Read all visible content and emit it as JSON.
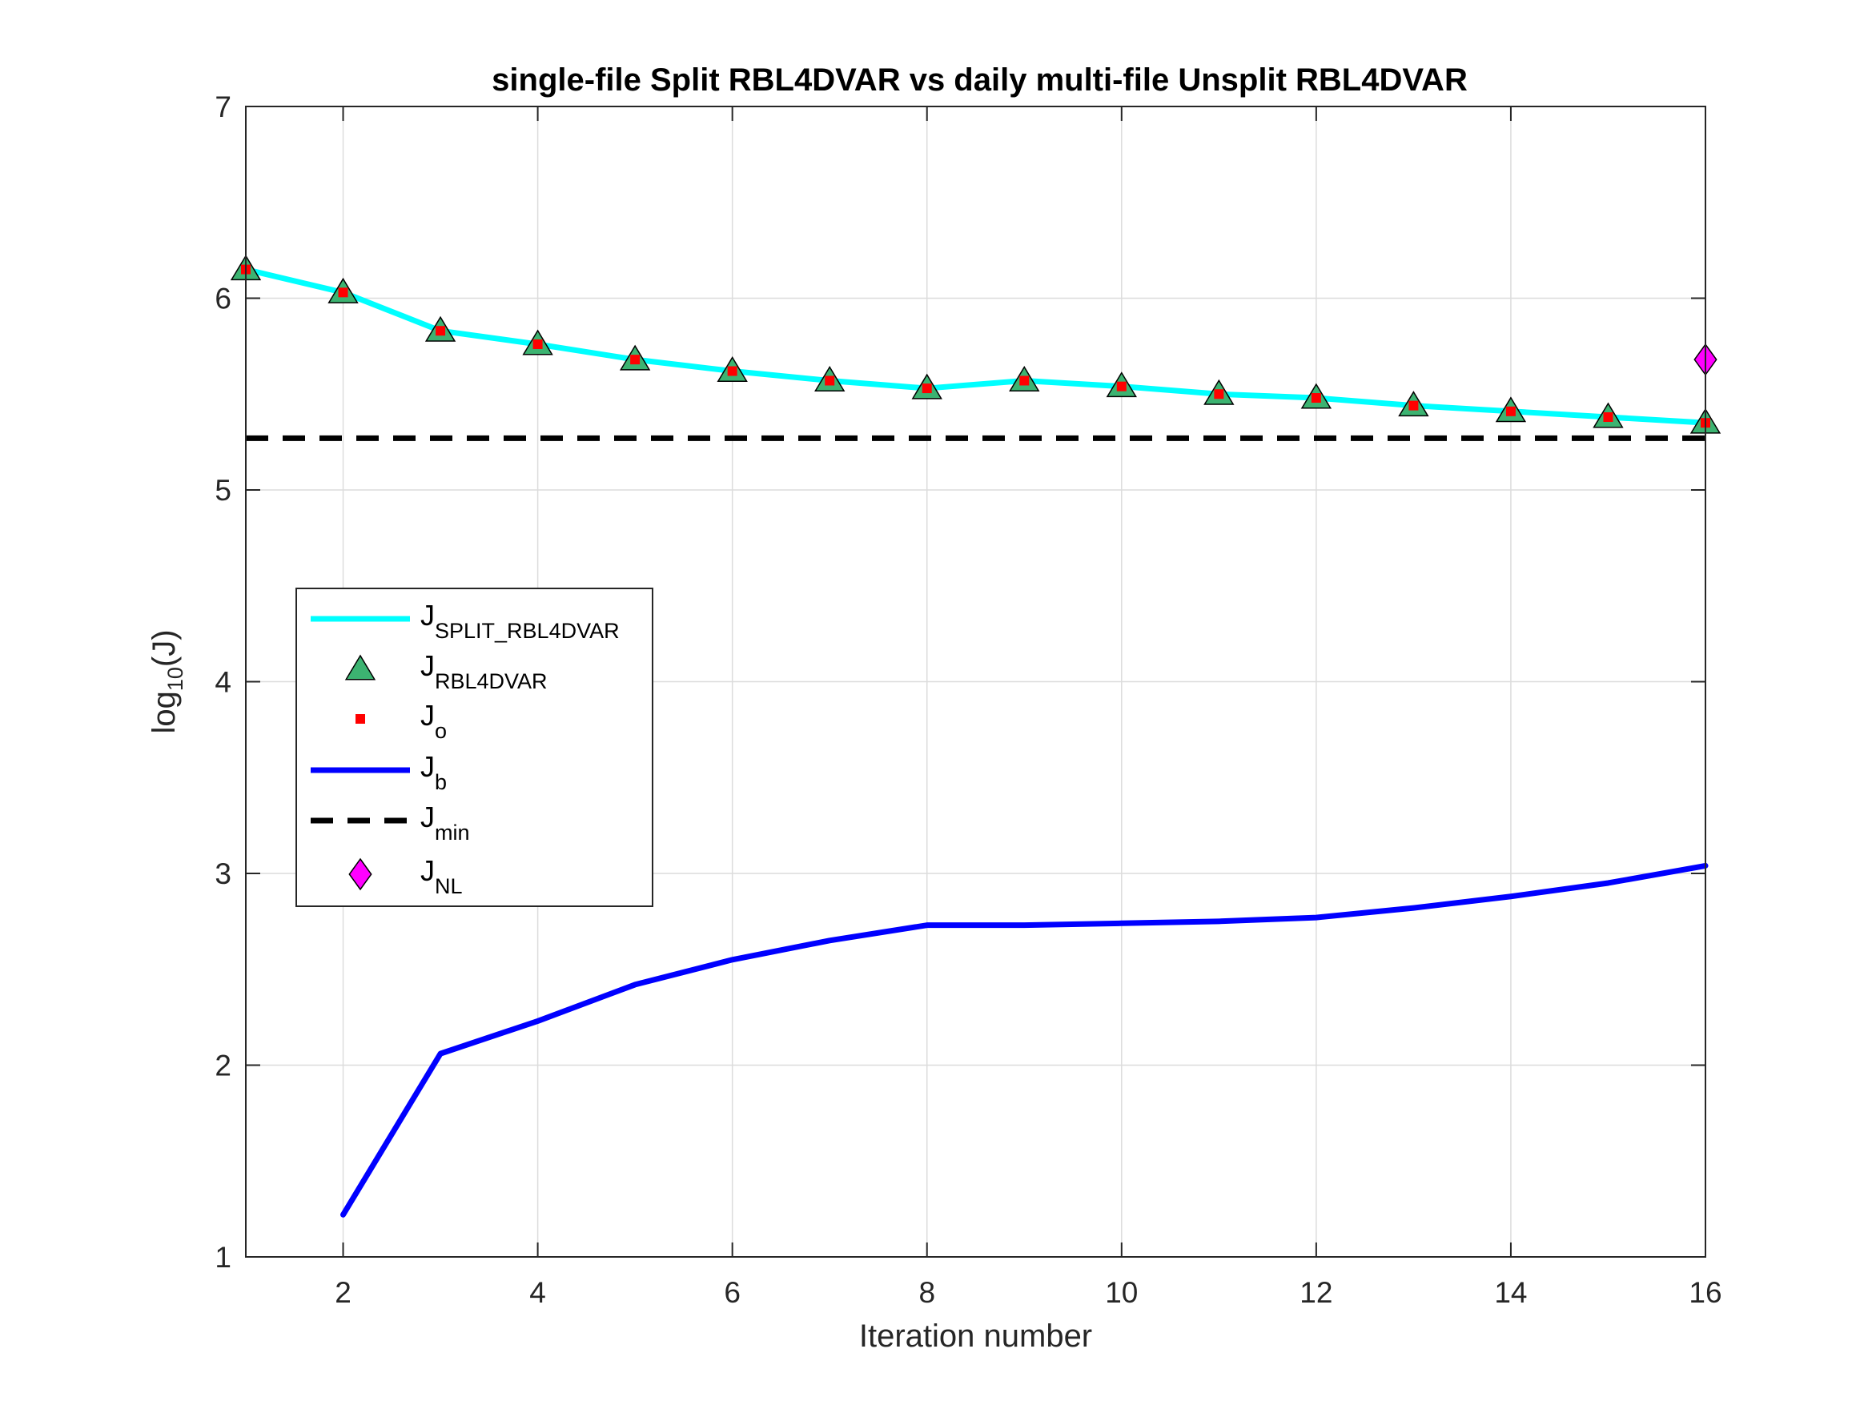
{
  "chart_data": {
    "type": "line",
    "title": "single-file Split RBL4DVAR  vs  daily multi-file Unsplit RBL4DVAR",
    "xlabel": "Iteration number",
    "ylabel": {
      "base": "log",
      "sub": "10",
      "tail": "(J)"
    },
    "xlim": [
      1,
      16
    ],
    "ylim": [
      1,
      7
    ],
    "xticks": [
      2,
      4,
      6,
      8,
      10,
      12,
      14,
      16
    ],
    "yticks": [
      1,
      2,
      3,
      4,
      5,
      6,
      7
    ],
    "grid": true,
    "legend_position": "middle-left",
    "x": [
      1,
      2,
      3,
      4,
      5,
      6,
      7,
      8,
      9,
      10,
      11,
      12,
      13,
      14,
      15,
      16
    ],
    "series": [
      {
        "name": {
          "base": "J",
          "sub": "SPLIT_RBL4DVAR"
        },
        "style": "line",
        "color": "#00FFFF",
        "values": [
          6.15,
          6.03,
          5.83,
          5.76,
          5.68,
          5.62,
          5.57,
          5.53,
          5.57,
          5.54,
          5.5,
          5.48,
          5.44,
          5.41,
          5.38,
          5.35
        ]
      },
      {
        "name": {
          "base": "J",
          "sub": "RBL4DVAR"
        },
        "style": "triangle-marker",
        "color": "#3CB371",
        "values": [
          6.15,
          6.03,
          5.83,
          5.76,
          5.68,
          5.62,
          5.57,
          5.53,
          5.57,
          5.54,
          5.5,
          5.48,
          5.44,
          5.41,
          5.38,
          5.35
        ]
      },
      {
        "name": {
          "base": "J",
          "sub": "o"
        },
        "style": "square-marker",
        "color": "#FF0000",
        "values": [
          6.15,
          6.03,
          5.83,
          5.76,
          5.68,
          5.62,
          5.57,
          5.53,
          5.57,
          5.54,
          5.5,
          5.48,
          5.44,
          5.41,
          5.38,
          5.35
        ]
      },
      {
        "name": {
          "base": "J",
          "sub": "b"
        },
        "style": "line",
        "color": "#0000FF",
        "x": [
          2,
          3,
          4,
          5,
          6,
          7,
          8,
          9,
          10,
          11,
          12,
          13,
          14,
          15,
          16
        ],
        "values": [
          1.22,
          2.06,
          2.23,
          2.42,
          2.55,
          2.65,
          2.73,
          2.73,
          2.74,
          2.75,
          2.77,
          2.82,
          2.88,
          2.95,
          3.04
        ]
      },
      {
        "name": {
          "base": "J",
          "sub": "min"
        },
        "style": "dashed-line",
        "color": "#000000",
        "x": [
          1,
          16
        ],
        "values": [
          5.27,
          5.27
        ]
      },
      {
        "name": {
          "base": "J",
          "sub": "NL"
        },
        "style": "diamond-marker",
        "color": "#FF00FF",
        "x": [
          16
        ],
        "values": [
          5.68
        ]
      }
    ]
  }
}
